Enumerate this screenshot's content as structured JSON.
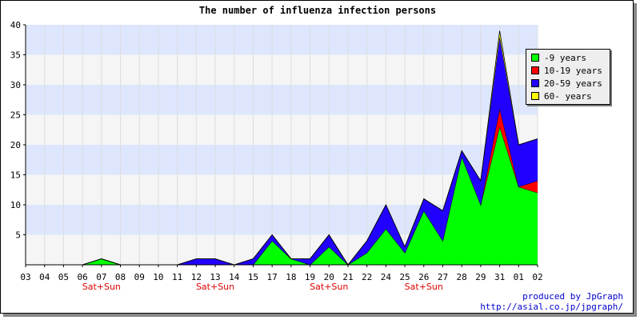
{
  "title": "The number of influenza infection persons",
  "footer": {
    "line1": "produced by JpGraph",
    "line2": "http://asial.co.jp/jpgraph/"
  },
  "colors": {
    "band_light": "#f5f5f5",
    "band_blue": "#dde6fd",
    "weekend_label": "#dd0000"
  },
  "chart_data": {
    "type": "area",
    "stacked": true,
    "title": "The number of influenza infection persons",
    "xlabel": "",
    "ylabel": "",
    "categories": [
      "03",
      "04",
      "05",
      "06",
      "07",
      "08",
      "09",
      "10",
      "11",
      "12",
      "13",
      "14",
      "15",
      "17",
      "18",
      "19",
      "20",
      "21",
      "22",
      "24",
      "25",
      "26",
      "27",
      "28",
      "29",
      "31",
      "01",
      "02"
    ],
    "weekend_note": "Sat+Sun",
    "weekend_categories": [
      "07",
      "13",
      "20",
      "26"
    ],
    "ylim": [
      0,
      40
    ],
    "yticks": [
      5,
      10,
      15,
      20,
      25,
      30,
      35,
      40
    ],
    "grid": "horizontal bands",
    "legend_position": "right",
    "series": [
      {
        "name": "-9 years",
        "color": "#00ff00",
        "values": [
          0,
          0,
          0,
          0,
          1,
          0,
          0,
          0,
          0,
          0,
          0,
          0,
          0,
          4,
          1,
          0,
          3,
          0,
          2,
          6,
          2,
          9,
          4,
          18,
          10,
          23,
          13,
          12
        ]
      },
      {
        "name": "10-19 years",
        "color": "#ff0000",
        "values": [
          0,
          0,
          0,
          0,
          0,
          0,
          0,
          0,
          0,
          0,
          0,
          0,
          0,
          0,
          0,
          0,
          0,
          0,
          0,
          0,
          0,
          0,
          0,
          0,
          0,
          3,
          0,
          2
        ]
      },
      {
        "name": "20-59 years",
        "color": "#2200ff",
        "values": [
          0,
          0,
          0,
          0,
          0,
          0,
          0,
          0,
          0,
          1,
          1,
          0,
          1,
          1,
          0,
          1,
          2,
          0,
          2,
          4,
          1,
          2,
          5,
          1,
          4,
          12,
          7,
          7
        ]
      },
      {
        "name": "60- years",
        "color": "#ffff00",
        "values": [
          0,
          0,
          0,
          0,
          0,
          0,
          0,
          0,
          0,
          0,
          0,
          0,
          0,
          0,
          0,
          0,
          0,
          0,
          0,
          0,
          0,
          0,
          0,
          0,
          0,
          1,
          0,
          0
        ]
      }
    ]
  }
}
